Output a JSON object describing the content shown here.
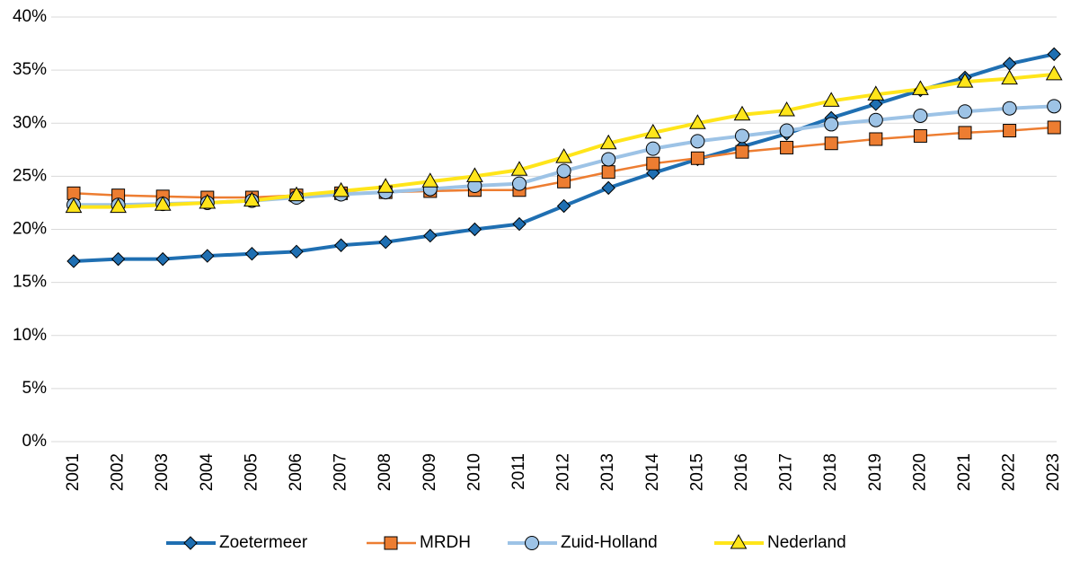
{
  "chart_data": {
    "type": "line",
    "categories": [
      "2001",
      "2002",
      "2003",
      "2004",
      "2005",
      "2006",
      "2007",
      "2008",
      "2009",
      "2010",
      "2011",
      "2012",
      "2013",
      "2014",
      "2015",
      "2016",
      "2017",
      "2018",
      "2019",
      "2020",
      "2021",
      "2022",
      "2023"
    ],
    "series": [
      {
        "name": "Zoetermeer",
        "color": "#1f6fb2",
        "marker": "diamond",
        "values": [
          17.0,
          17.2,
          17.2,
          17.5,
          17.7,
          17.9,
          18.5,
          18.8,
          19.4,
          20.0,
          20.5,
          22.2,
          23.9,
          25.3,
          26.6,
          27.8,
          29.0,
          30.5,
          31.8,
          33.1,
          34.3,
          35.6,
          36.5
        ]
      },
      {
        "name": "MRDH",
        "color": "#ed7d31",
        "marker": "square",
        "values": [
          23.4,
          23.2,
          23.1,
          23.0,
          23.0,
          23.2,
          23.4,
          23.5,
          23.6,
          23.7,
          23.7,
          24.5,
          25.4,
          26.2,
          26.7,
          27.3,
          27.7,
          28.1,
          28.5,
          28.8,
          29.1,
          29.3,
          29.6
        ]
      },
      {
        "name": "Zuid-Holland",
        "color": "#9dc3e6",
        "marker": "circle",
        "values": [
          22.3,
          22.3,
          22.4,
          22.5,
          22.7,
          23.0,
          23.3,
          23.5,
          23.8,
          24.1,
          24.3,
          25.5,
          26.6,
          27.6,
          28.3,
          28.8,
          29.3,
          29.9,
          30.3,
          30.7,
          31.1,
          31.4,
          31.6
        ]
      },
      {
        "name": "Nederland",
        "color": "#ffe51a",
        "marker": "triangle",
        "values": [
          22.1,
          22.1,
          22.3,
          22.5,
          22.7,
          23.2,
          23.6,
          24.0,
          24.5,
          25.0,
          25.6,
          26.8,
          28.1,
          29.1,
          30.0,
          30.8,
          31.2,
          32.1,
          32.7,
          33.2,
          33.9,
          34.2,
          34.6
        ]
      }
    ],
    "ylim": [
      0,
      40
    ],
    "yticks": [
      {
        "value": 0,
        "label": "0%"
      },
      {
        "value": 5,
        "label": "5%"
      },
      {
        "value": 10,
        "label": "10%"
      },
      {
        "value": 15,
        "label": "15%"
      },
      {
        "value": 20,
        "label": "20%"
      },
      {
        "value": 25,
        "label": "25%"
      },
      {
        "value": 30,
        "label": "30%"
      },
      {
        "value": 35,
        "label": "35%"
      },
      {
        "value": 40,
        "label": "40%"
      }
    ],
    "grid": true,
    "legend": "bottom"
  }
}
